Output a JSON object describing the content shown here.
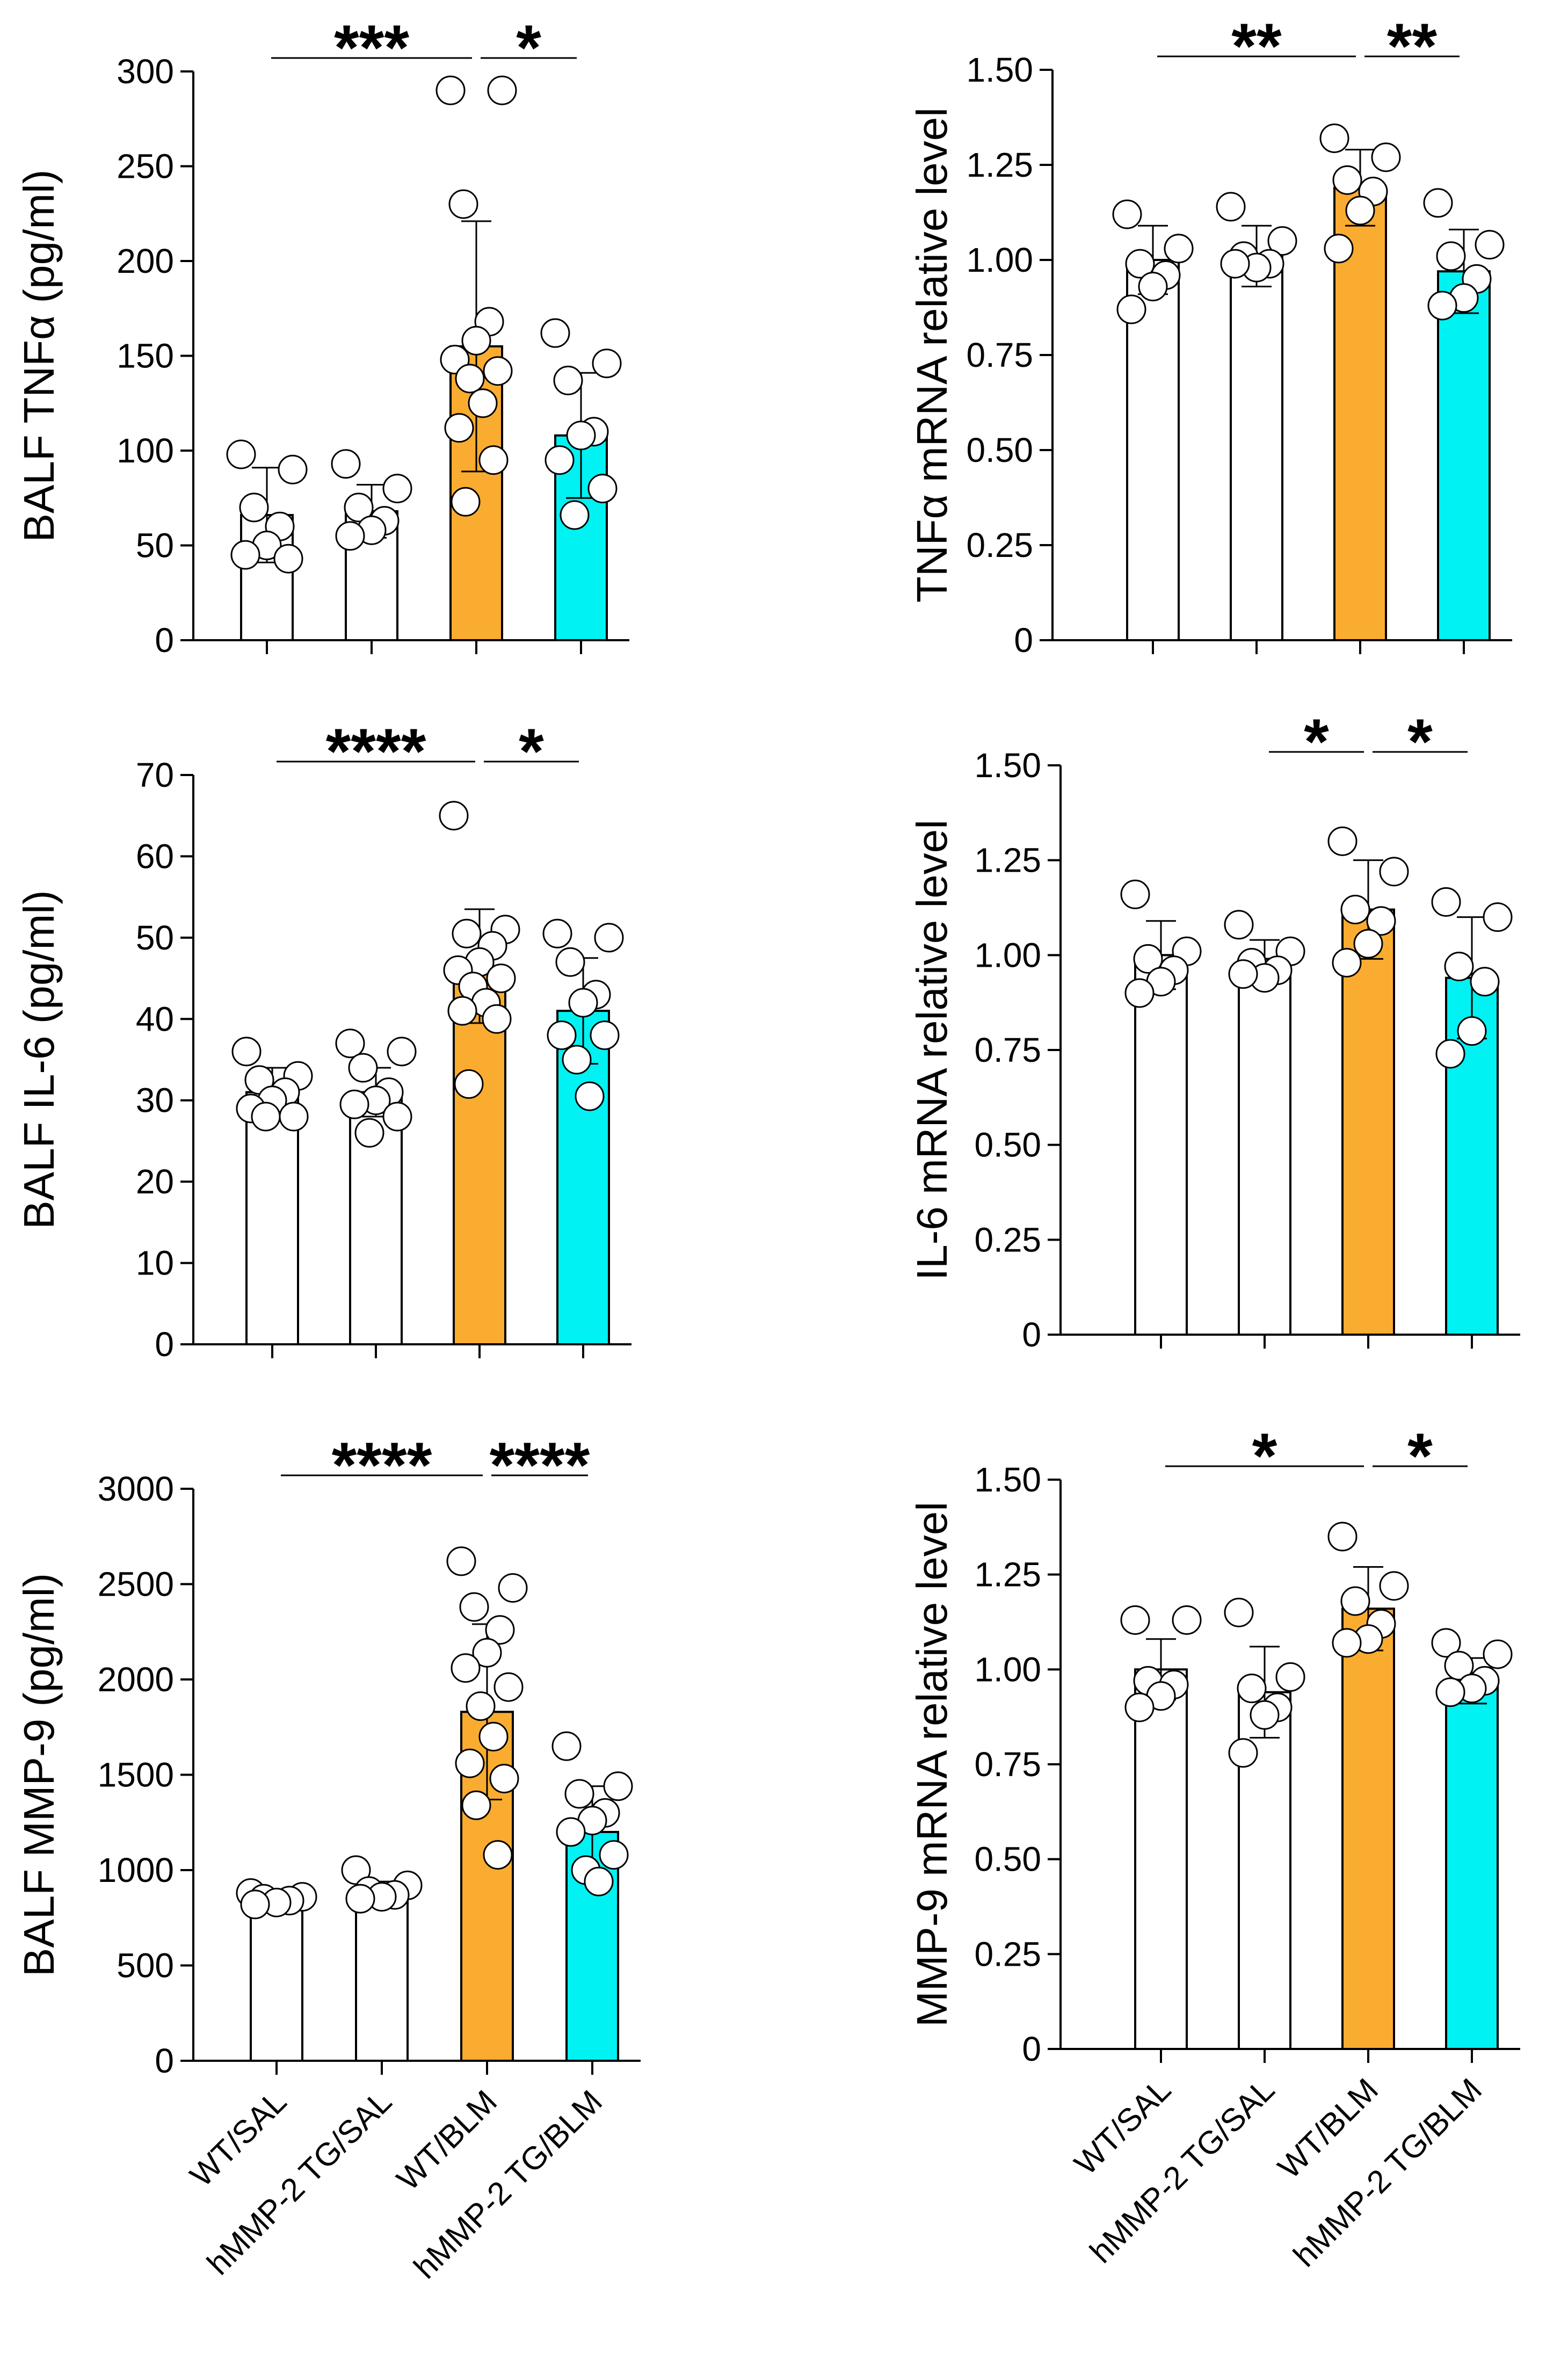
{
  "chart_data": [
    {
      "type": "bar",
      "id": "balf-tnfa",
      "ylabel": "BALF TNFα (pg/ml)",
      "ylim": [
        0,
        300
      ],
      "yticks": [
        0,
        50,
        100,
        150,
        200,
        250,
        300
      ],
      "ytick_labels": [
        "0",
        "50",
        "100",
        "150",
        "200",
        "250",
        "300"
      ],
      "categories": [
        "WT/SAL",
        "hMMP-2 TG/SAL",
        "WT/BLM",
        "hMMP-2 TG/BLM"
      ],
      "show_category_labels": false,
      "bar_colors": [
        "#ffffff",
        "#ffffff",
        "#f9ac30",
        "#00f2f2"
      ],
      "values": [
        66,
        68,
        155,
        108
      ],
      "error_sd": [
        25,
        14,
        66,
        33
      ],
      "points": [
        [
          98,
          90,
          70,
          60,
          50,
          45,
          43
        ],
        [
          93,
          80,
          70,
          63,
          58,
          55
        ],
        [
          290,
          290,
          230,
          168,
          158,
          148,
          142,
          138,
          125,
          112,
          95,
          73
        ],
        [
          162,
          146,
          137,
          110,
          108,
          95,
          80,
          66
        ]
      ],
      "significance": [
        {
          "from": 0,
          "to": 2,
          "label": "***"
        },
        {
          "from": 2,
          "to": 3,
          "label": "*"
        }
      ]
    },
    {
      "type": "bar",
      "id": "tnfa-mrna",
      "ylabel": "TNFα mRNA relative level",
      "ylim": [
        0,
        1.5
      ],
      "yticks": [
        0,
        0.25,
        0.5,
        0.75,
        1.0,
        1.25,
        1.5
      ],
      "ytick_labels": [
        "0",
        "0.25",
        "0.50",
        "0.75",
        "1.00",
        "1.25",
        "1.50"
      ],
      "categories": [
        "WT/SAL",
        "hMMP-2 TG/SAL",
        "WT/BLM",
        "hMMP-2 TG/BLM"
      ],
      "show_category_labels": false,
      "bar_colors": [
        "#ffffff",
        "#ffffff",
        "#f9ac30",
        "#00f2f2"
      ],
      "values": [
        1.0,
        1.01,
        1.19,
        0.97
      ],
      "error_sd": [
        0.09,
        0.08,
        0.1,
        0.11
      ],
      "points": [
        [
          1.12,
          1.03,
          0.99,
          0.96,
          0.93,
          0.87
        ],
        [
          1.14,
          1.05,
          1.01,
          0.99,
          0.98,
          0.99
        ],
        [
          1.32,
          1.27,
          1.21,
          1.18,
          1.13,
          1.03
        ],
        [
          1.15,
          1.04,
          1.01,
          0.95,
          0.9,
          0.88
        ]
      ],
      "significance": [
        {
          "from": 0,
          "to": 2,
          "label": "**"
        },
        {
          "from": 2,
          "to": 3,
          "label": "**"
        }
      ]
    },
    {
      "type": "bar",
      "id": "balf-il6",
      "ylabel": "BALF IL-6 (pg/ml)",
      "ylim": [
        0,
        70
      ],
      "yticks": [
        0,
        10,
        20,
        30,
        40,
        50,
        60,
        70
      ],
      "ytick_labels": [
        "0",
        "10",
        "20",
        "30",
        "40",
        "50",
        "60",
        "70"
      ],
      "categories": [
        "WT/SAL",
        "hMMP-2 TG/SAL",
        "WT/BLM",
        "hMMP-2 TG/BLM"
      ],
      "show_category_labels": false,
      "bar_colors": [
        "#ffffff",
        "#ffffff",
        "#f9ac30",
        "#00f2f2"
      ],
      "values": [
        31,
        31,
        46.5,
        41
      ],
      "error_sd": [
        3,
        3,
        7,
        6.5
      ],
      "points": [
        [
          36,
          33,
          32.5,
          31,
          30,
          29,
          28,
          28
        ],
        [
          37,
          36,
          34,
          31,
          30,
          29.5,
          28,
          26
        ],
        [
          65,
          51,
          50.5,
          49,
          47,
          46,
          45,
          44,
          42,
          41,
          40,
          32
        ],
        [
          50.5,
          50,
          47,
          43,
          42,
          38,
          38,
          35,
          30.5
        ]
      ],
      "significance": [
        {
          "from": 0,
          "to": 2,
          "label": "****"
        },
        {
          "from": 2,
          "to": 3,
          "label": "*"
        }
      ]
    },
    {
      "type": "bar",
      "id": "il6-mrna",
      "ylabel": "IL-6 mRNA relative level",
      "ylim": [
        0,
        1.5
      ],
      "yticks": [
        0,
        0.25,
        0.5,
        0.75,
        1.0,
        1.25,
        1.5
      ],
      "ytick_labels": [
        "0",
        "0.25",
        "0.50",
        "0.75",
        "1.00",
        "1.25",
        "1.50"
      ],
      "categories": [
        "WT/SAL",
        "hMMP-2 TG/SAL",
        "WT/BLM",
        "hMMP-2 TG/BLM"
      ],
      "show_category_labels": false,
      "bar_colors": [
        "#ffffff",
        "#ffffff",
        "#f9ac30",
        "#00f2f2"
      ],
      "values": [
        1.0,
        0.99,
        1.12,
        0.94
      ],
      "error_sd": [
        0.09,
        0.05,
        0.13,
        0.16
      ],
      "points": [
        [
          1.16,
          1.01,
          0.99,
          0.96,
          0.93,
          0.9
        ],
        [
          1.08,
          1.01,
          0.98,
          0.96,
          0.94,
          0.95
        ],
        [
          1.3,
          1.22,
          1.12,
          1.09,
          1.03,
          0.98
        ],
        [
          1.14,
          1.1,
          0.97,
          0.93,
          0.8,
          0.74
        ]
      ],
      "significance": [
        {
          "from": 1,
          "to": 2,
          "label": "*"
        },
        {
          "from": 2,
          "to": 3,
          "label": "*"
        }
      ]
    },
    {
      "type": "bar",
      "id": "balf-mmp9",
      "ylabel": "BALF MMP-9  (pg/ml)",
      "ylim": [
        0,
        3000
      ],
      "yticks": [
        0,
        500,
        1000,
        1500,
        2000,
        2500,
        3000
      ],
      "ytick_labels": [
        "0",
        "500",
        "1000",
        "1500",
        "2000",
        "2500",
        "3000"
      ],
      "categories": [
        "WT/SAL",
        "hMMP-2 TG/SAL",
        "WT/BLM",
        "hMMP-2 TG/BLM"
      ],
      "show_category_labels": true,
      "bar_colors": [
        "#ffffff",
        "#ffffff",
        "#f9ac30",
        "#00f2f2"
      ],
      "values": [
        850,
        880,
        1830,
        1200
      ],
      "error_sd": [
        30,
        60,
        460,
        240
      ],
      "points": [
        [
          880,
          860,
          850,
          840,
          830,
          820
        ],
        [
          1000,
          920,
          890,
          870,
          860,
          850
        ],
        [
          2620,
          2480,
          2380,
          2260,
          2140,
          2060,
          1960,
          1860,
          1700,
          1560,
          1480,
          1340,
          1080
        ],
        [
          1650,
          1440,
          1400,
          1300,
          1260,
          1200,
          1080,
          1000,
          940
        ]
      ],
      "significance": [
        {
          "from": 0,
          "to": 2,
          "label": "****"
        },
        {
          "from": 2,
          "to": 3,
          "label": "****"
        }
      ]
    },
    {
      "type": "bar",
      "id": "mmp9-mrna",
      "ylabel": "MMP-9  mRNA relative level",
      "ylim": [
        0,
        1.5
      ],
      "yticks": [
        0,
        0.25,
        0.5,
        0.75,
        1.0,
        1.25,
        1.5
      ],
      "ytick_labels": [
        "0",
        "0.25",
        "0.50",
        "0.75",
        "1.00",
        "1.25",
        "1.50"
      ],
      "categories": [
        "WT/SAL",
        "hMMP-2 TG/SAL",
        "WT/BLM",
        "hMMP-2 TG/BLM"
      ],
      "show_category_labels": true,
      "bar_colors": [
        "#ffffff",
        "#ffffff",
        "#f9ac30",
        "#00f2f2"
      ],
      "values": [
        1.0,
        0.94,
        1.16,
        0.97
      ],
      "error_sd": [
        0.08,
        0.12,
        0.11,
        0.06
      ],
      "points": [
        [
          1.13,
          1.13,
          0.97,
          0.96,
          0.93,
          0.9
        ],
        [
          1.15,
          0.98,
          0.95,
          0.9,
          0.88,
          0.78
        ],
        [
          1.35,
          1.22,
          1.18,
          1.12,
          1.08,
          1.07
        ],
        [
          1.07,
          1.04,
          1.01,
          0.97,
          0.95,
          0.94
        ]
      ],
      "significance": [
        {
          "from": 0,
          "to": 2,
          "label": "*"
        },
        {
          "from": 2,
          "to": 3,
          "label": "*"
        }
      ]
    }
  ]
}
